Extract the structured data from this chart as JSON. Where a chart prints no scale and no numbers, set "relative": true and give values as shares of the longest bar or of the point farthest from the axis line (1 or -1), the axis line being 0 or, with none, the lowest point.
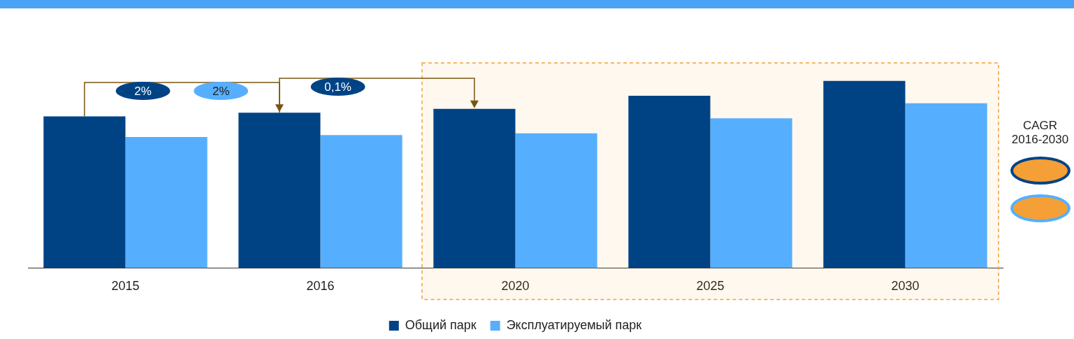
{
  "chart_data": {
    "type": "bar",
    "relative": true,
    "categories": [
      "2015",
      "2016",
      "2020",
      "2025",
      "2030"
    ],
    "series": [
      {
        "name": "Общий парк",
        "color": "#004385",
        "values": [
          0.81,
          0.83,
          0.85,
          0.92,
          1
        ]
      },
      {
        "name": "Эксплуатируемый парк",
        "color": "#56affe",
        "values": [
          0.7,
          0.71,
          0.72,
          0.8,
          0.88
        ]
      }
    ],
    "bands": [
      {
        "axis": "x",
        "from": "2020",
        "to": "2030",
        "color": "#f4a036"
      }
    ],
    "annotations": [
      "2%",
      "2%",
      "0,1%",
      "CAGR 2016-2030"
    ],
    "legend": "bottom",
    "grid": false
  }
}
